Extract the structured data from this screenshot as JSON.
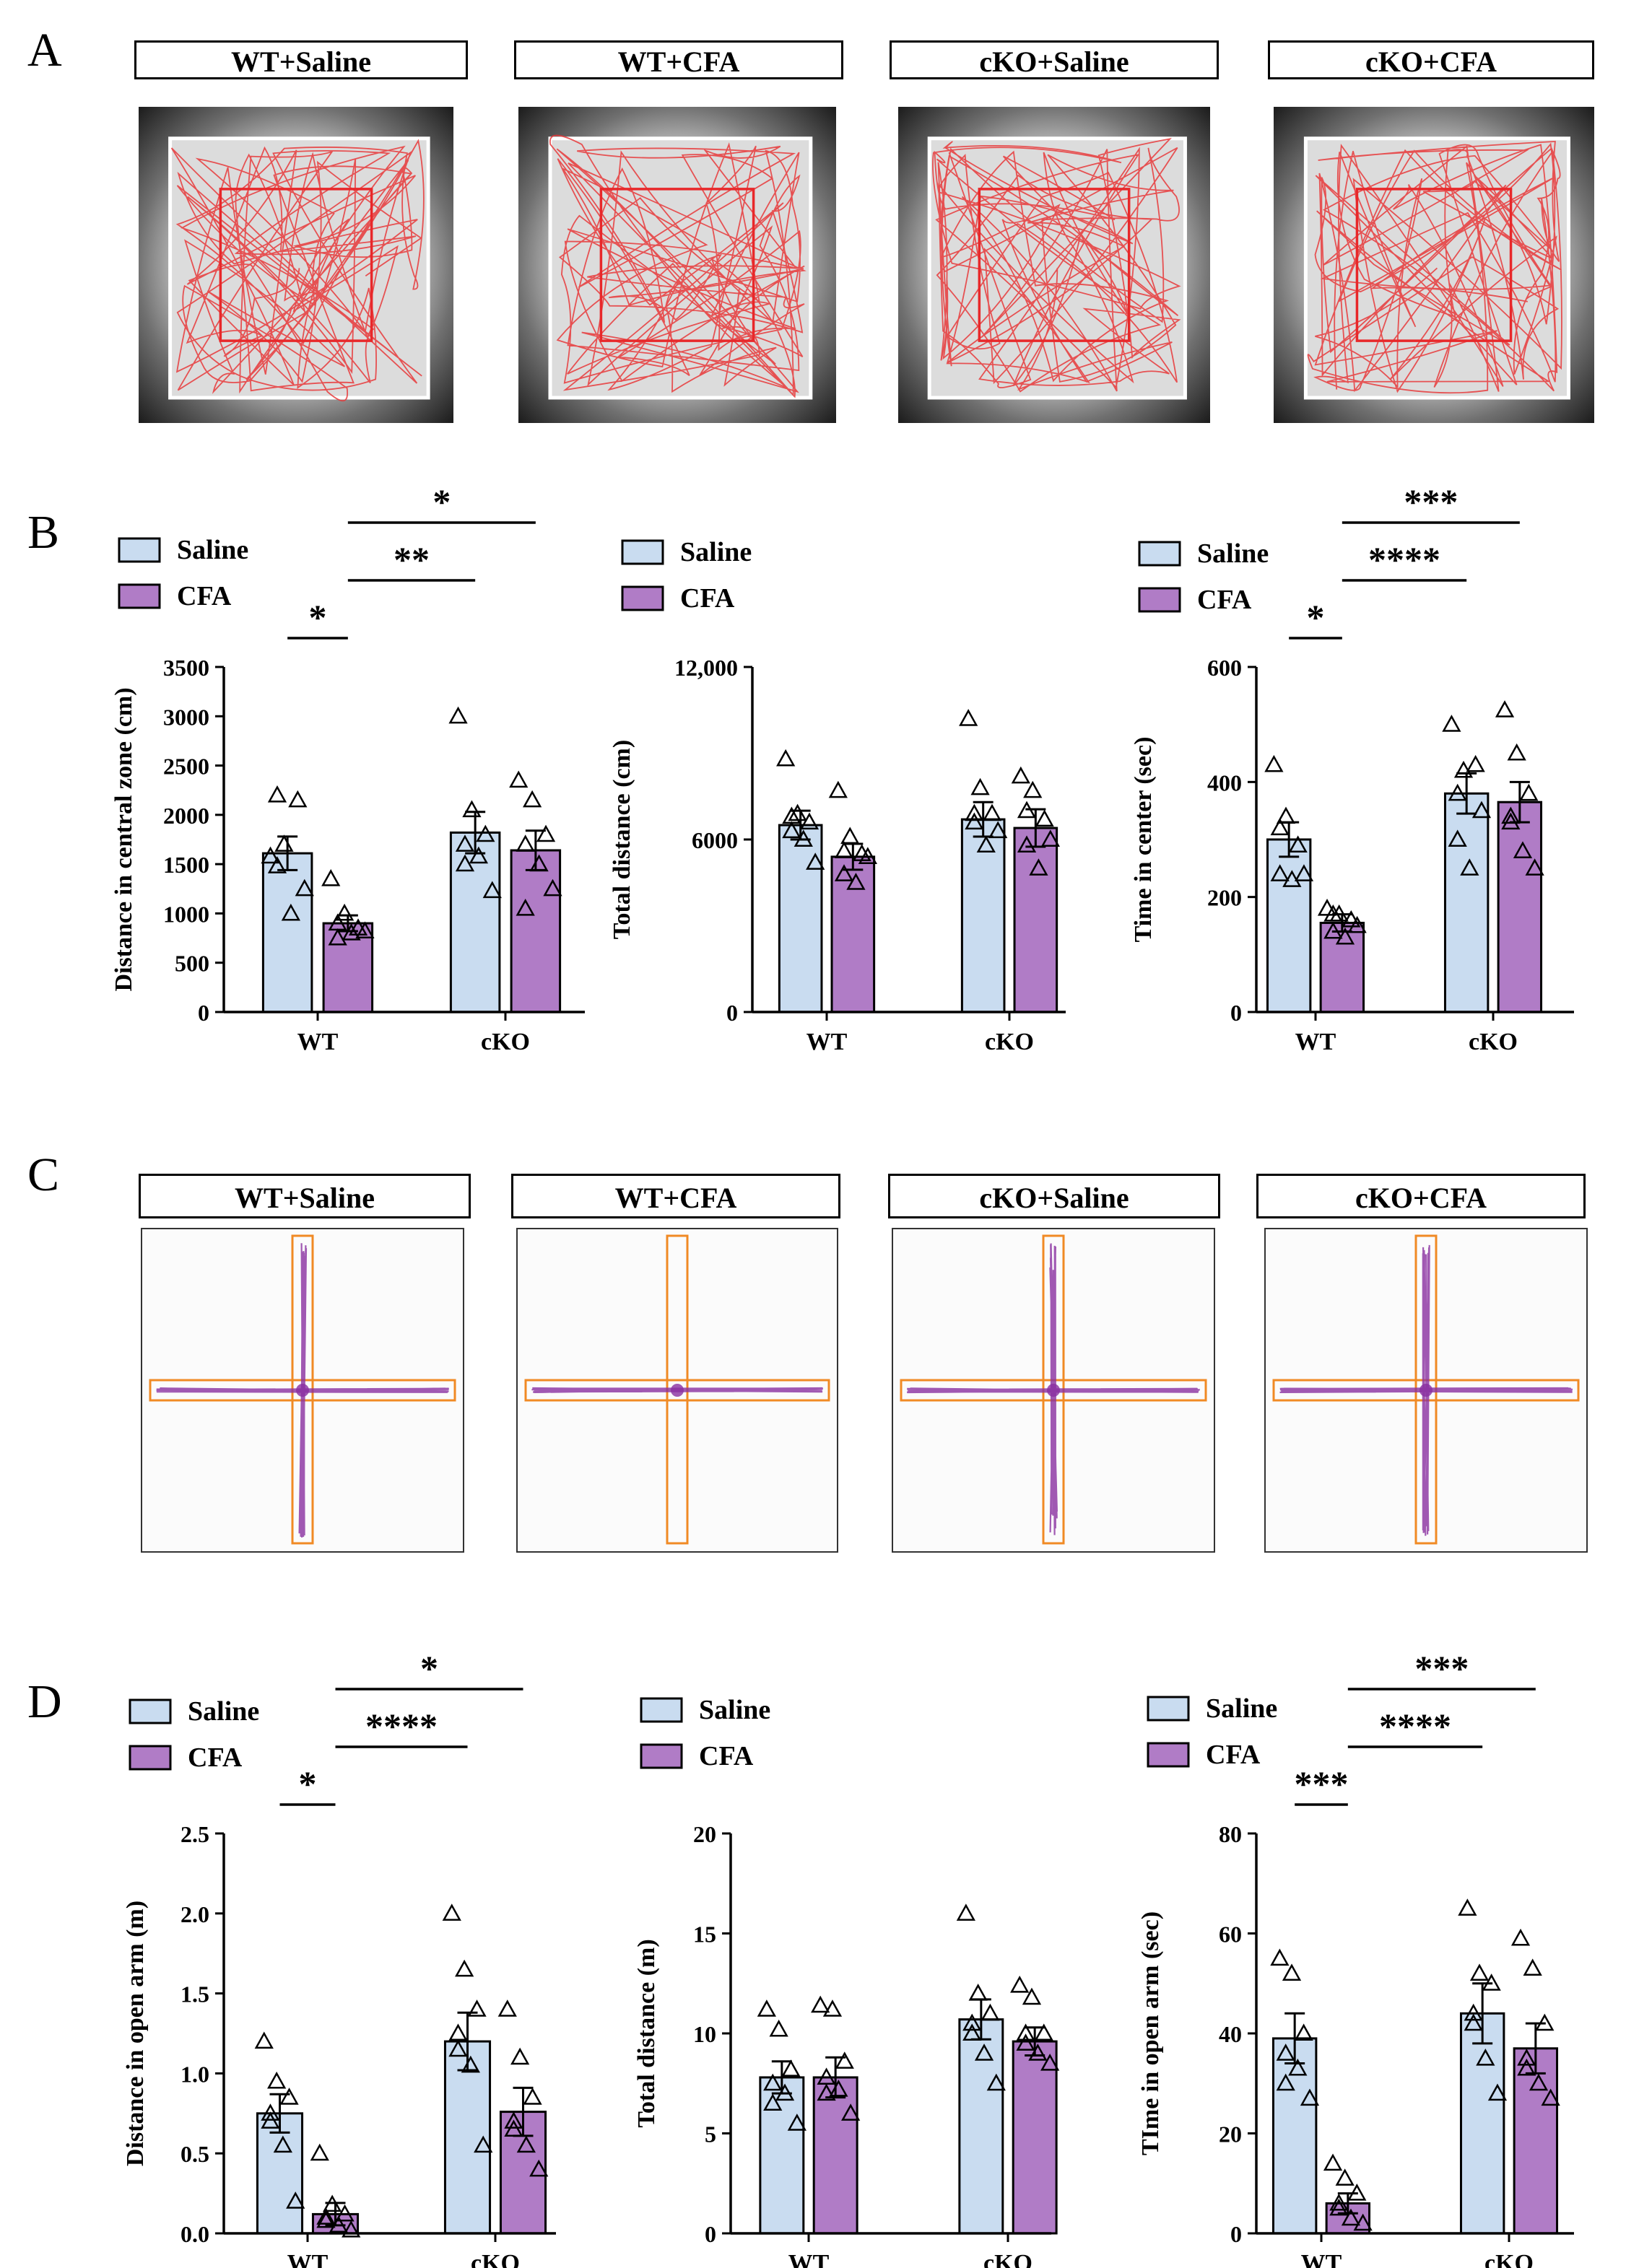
{
  "panel_letters": [
    "A",
    "B",
    "C",
    "D"
  ],
  "group_titles_A": [
    "WT+Saline",
    "WT+CFA",
    "cKO+Saline",
    "cKO+CFA"
  ],
  "group_titles_C": [
    "WT+Saline",
    "WT+CFA",
    "cKO+Saline",
    "cKO+CFA"
  ],
  "colors": {
    "saline": "#c9dcf0",
    "cfa": "#b07cc6",
    "track_of": "#e8383a",
    "track_epm": "#8a2fa0",
    "arm": "#f08a24"
  },
  "chart_data": [
    {
      "id": "B1",
      "type": "bar",
      "legend": [
        "Saline",
        "CFA"
      ],
      "categories": [
        "WT",
        "cKO"
      ],
      "ylabel": "Distance in central zone (cm)",
      "ylim": [
        0,
        3500
      ],
      "yticks": [
        "0",
        "500",
        "1000",
        "1500",
        "2000",
        "2500",
        "3000",
        "3500"
      ],
      "ytick_values": [
        0,
        500,
        1000,
        1500,
        2000,
        2500,
        3000,
        3500
      ],
      "series": [
        {
          "name": "Saline",
          "values": [
            1610,
            1820
          ],
          "sem": [
            170,
            210
          ],
          "points": [
            [
              1580,
              1700,
              2150,
              2200,
              1000,
              1250,
              1480
            ],
            [
              3000,
              2050,
              1800,
              1500,
              1580,
              1230,
              1700
            ]
          ]
        },
        {
          "name": "CFA",
          "values": [
            900,
            1640
          ],
          "sem": [
            80,
            200
          ],
          "points": [
            [
              1350,
              1000,
              850,
              900,
              800,
              820,
              750
            ],
            [
              2350,
              2150,
              1800,
              1700,
              1500,
              1250,
              1050
            ]
          ]
        }
      ],
      "significance": [
        {
          "label": "*",
          "from": [
            0,
            0
          ],
          "to": [
            0,
            1
          ]
        },
        {
          "label": "**",
          "from": [
            0,
            1
          ],
          "to": [
            1,
            0
          ]
        },
        {
          "label": "*",
          "from": [
            0,
            1
          ],
          "to": [
            1,
            1
          ]
        }
      ]
    },
    {
      "id": "B2",
      "type": "bar",
      "legend": [
        "Saline",
        "CFA"
      ],
      "categories": [
        "WT",
        "cKO"
      ],
      "ylabel": "Total distance (cm)",
      "ylim": [
        0,
        12000
      ],
      "yticks": [
        "0",
        "6000",
        "12,000"
      ],
      "ytick_values": [
        0,
        6000,
        12000
      ],
      "series": [
        {
          "name": "Saline",
          "values": [
            6500,
            6700
          ],
          "sem": [
            500,
            600
          ],
          "points": [
            [
              8800,
              6900,
              6600,
              6300,
              6000,
              5200,
              6800
            ],
            [
              10200,
              7800,
              6900,
              6600,
              5800,
              6300,
              6900
            ]
          ]
        },
        {
          "name": "CFA",
          "values": [
            5400,
            6400
          ],
          "sem": [
            450,
            650
          ],
          "points": [
            [
              7700,
              6100,
              5500,
              4800,
              4500,
              5400,
              5600
            ],
            [
              8200,
              7700,
              6700,
              5800,
              5000,
              6000,
              7000
            ]
          ]
        }
      ],
      "significance": []
    },
    {
      "id": "B3",
      "type": "bar",
      "legend": [
        "Saline",
        "CFA"
      ],
      "categories": [
        "WT",
        "cKO"
      ],
      "ylabel": "Time in center (sec)",
      "ylim": [
        0,
        600
      ],
      "yticks": [
        "0",
        "200",
        "400",
        "600"
      ],
      "ytick_values": [
        0,
        200,
        400,
        600
      ],
      "series": [
        {
          "name": "Saline",
          "values": [
            300,
            380
          ],
          "sem": [
            30,
            35
          ],
          "points": [
            [
              430,
              340,
              290,
              240,
              230,
              240,
              320
            ],
            [
              500,
              420,
              430,
              300,
              250,
              350,
              380
            ]
          ]
        },
        {
          "name": "CFA",
          "values": [
            155,
            365
          ],
          "sem": [
            15,
            35
          ],
          "points": [
            [
              180,
              170,
              160,
              140,
              130,
              150,
              170
            ],
            [
              525,
              450,
              380,
              330,
              280,
              250,
              340
            ]
          ]
        }
      ],
      "significance": [
        {
          "label": "*",
          "from": [
            0,
            0
          ],
          "to": [
            0,
            1
          ]
        },
        {
          "label": "****",
          "from": [
            0,
            1
          ],
          "to": [
            1,
            0
          ]
        },
        {
          "label": "***",
          "from": [
            0,
            1
          ],
          "to": [
            1,
            1
          ]
        }
      ]
    },
    {
      "id": "D1",
      "type": "bar",
      "legend": [
        "Saline",
        "CFA"
      ],
      "categories": [
        "WT",
        "cKO"
      ],
      "ylabel": "Distance in open arm (m)",
      "ylim": [
        0,
        2.5
      ],
      "yticks": [
        "0.0",
        "0.5",
        "1.0",
        "1.5",
        "2.0",
        "2.5"
      ],
      "ytick_values": [
        0,
        0.5,
        1,
        1.5,
        2,
        2.5
      ],
      "series": [
        {
          "name": "Saline",
          "values": [
            0.75,
            1.2
          ],
          "sem": [
            0.12,
            0.18
          ],
          "points": [
            [
              1.2,
              0.95,
              0.85,
              0.7,
              0.55,
              0.2,
              0.75
            ],
            [
              2.0,
              1.65,
              1.4,
              1.25,
              1.05,
              0.55,
              1.15
            ]
          ]
        },
        {
          "name": "CFA",
          "values": [
            0.12,
            0.76
          ],
          "sem": [
            0.07,
            0.15
          ],
          "points": [
            [
              0.5,
              0.18,
              0.12,
              0.1,
              0.05,
              0.02,
              0.08
            ],
            [
              1.4,
              1.1,
              0.85,
              0.7,
              0.55,
              0.4,
              0.65
            ]
          ]
        }
      ],
      "significance": [
        {
          "label": "*",
          "from": [
            0,
            0
          ],
          "to": [
            0,
            1
          ]
        },
        {
          "label": "****",
          "from": [
            0,
            1
          ],
          "to": [
            1,
            0
          ]
        },
        {
          "label": "*",
          "from": [
            0,
            1
          ],
          "to": [
            1,
            1
          ]
        }
      ]
    },
    {
      "id": "D2",
      "type": "bar",
      "legend": [
        "Saline",
        "CFA"
      ],
      "categories": [
        "WT",
        "cKO"
      ],
      "ylabel": "Total distance (m)",
      "ylim": [
        0,
        20
      ],
      "yticks": [
        "0",
        "5",
        "10",
        "15",
        "20"
      ],
      "ytick_values": [
        0,
        5,
        10,
        15,
        20
      ],
      "series": [
        {
          "name": "Saline",
          "values": [
            7.8,
            10.7
          ],
          "sem": [
            0.8,
            1.0
          ],
          "points": [
            [
              11.2,
              10.2,
              8.2,
              7.5,
              7.0,
              5.5,
              6.5
            ],
            [
              16.0,
              12.0,
              11.0,
              10.0,
              9.0,
              7.5,
              10.5
            ]
          ]
        },
        {
          "name": "CFA",
          "values": [
            7.8,
            9.6
          ],
          "sem": [
            1.0,
            0.7
          ],
          "points": [
            [
              11.4,
              11.2,
              8.6,
              7.8,
              7.2,
              6.0,
              7.0
            ],
            [
              12.4,
              11.8,
              10.0,
              9.5,
              9.0,
              8.5,
              10.0
            ]
          ]
        }
      ],
      "significance": []
    },
    {
      "id": "D3",
      "type": "bar",
      "legend": [
        "Saline",
        "CFA"
      ],
      "categories": [
        "WT",
        "cKO"
      ],
      "ylabel": "TIme in open arm (sec)",
      "ylim": [
        0,
        80
      ],
      "yticks": [
        "0",
        "20",
        "40",
        "60",
        "80"
      ],
      "ytick_values": [
        0,
        20,
        40,
        60,
        80
      ],
      "series": [
        {
          "name": "Saline",
          "values": [
            39,
            44
          ],
          "sem": [
            5,
            6
          ],
          "points": [
            [
              55,
              52,
              40,
              36,
              33,
              27,
              30
            ],
            [
              65,
              52,
              50,
              42,
              35,
              28,
              44
            ]
          ]
        },
        {
          "name": "CFA",
          "values": [
            6,
            37
          ],
          "sem": [
            2,
            5
          ],
          "points": [
            [
              14,
              11,
              8,
              5,
              3,
              2,
              6
            ],
            [
              59,
              53,
              42,
              35,
              30,
              27,
              33
            ]
          ]
        }
      ],
      "significance": [
        {
          "label": "***",
          "from": [
            0,
            0
          ],
          "to": [
            0,
            1
          ]
        },
        {
          "label": "****",
          "from": [
            0,
            1
          ],
          "to": [
            1,
            0
          ]
        },
        {
          "label": "***",
          "from": [
            0,
            1
          ],
          "to": [
            1,
            1
          ]
        }
      ]
    }
  ]
}
